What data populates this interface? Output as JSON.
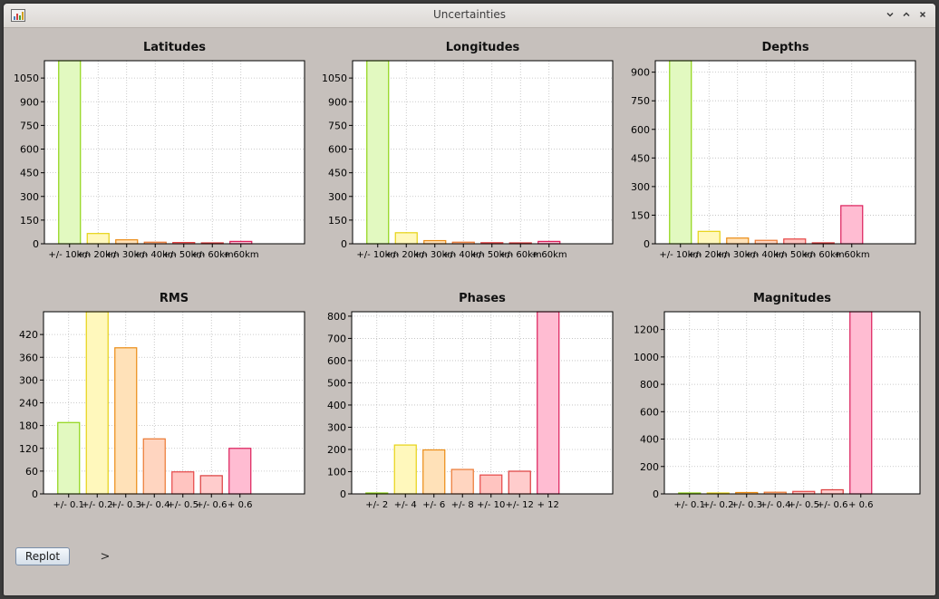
{
  "window": {
    "title": "Uncertainties",
    "controls": {
      "minimize_icon": "chevron-down-icon",
      "maximize_icon": "chevron-up-icon",
      "close_icon": "close-icon"
    }
  },
  "toolbar": {
    "replot_label": "Replot",
    "expand_icon": "chevron-right-icon",
    "expand_glyph": ">"
  },
  "colors": [
    "#8fd414",
    "#e6d214",
    "#eb8c14",
    "#eb7832",
    "#e64646",
    "#dc3c3c",
    "#dc1e5a"
  ],
  "fills": [
    "#e2f9c0",
    "#fff8bc",
    "#ffe1b8",
    "#ffd5c0",
    "#ffc4c0",
    "#ffcccc",
    "#ffbcd2"
  ],
  "chart_data": [
    {
      "type": "bar",
      "title": "Latitudes",
      "categories": [
        "+/- 10km",
        "+/- 20km",
        "+/- 30km",
        "+/- 40km",
        "+/- 50km",
        "+/- 60km",
        "+ 60km"
      ],
      "values": [
        1160,
        65,
        25,
        10,
        8,
        3,
        15
      ],
      "ylim": [
        0,
        1160
      ],
      "yticks": [
        0,
        150,
        300,
        450,
        600,
        750,
        900,
        1050
      ],
      "grid": true
    },
    {
      "type": "bar",
      "title": "Longitudes",
      "categories": [
        "+/- 10km",
        "+/- 20km",
        "+/- 30km",
        "+/- 40km",
        "+/- 50km",
        "+/- 60km",
        "+ 60km"
      ],
      "values": [
        1160,
        70,
        20,
        10,
        7,
        5,
        15
      ],
      "ylim": [
        0,
        1160
      ],
      "yticks": [
        0,
        150,
        300,
        450,
        600,
        750,
        900,
        1050
      ],
      "grid": true
    },
    {
      "type": "bar",
      "title": "Depths",
      "categories": [
        "+/- 10km",
        "+/- 20km",
        "+/- 30km",
        "+/- 40km",
        "+/- 50km",
        "+/- 60km",
        "+ 60km"
      ],
      "values": [
        960,
        65,
        30,
        18,
        25,
        5,
        200
      ],
      "ylim": [
        0,
        960
      ],
      "yticks": [
        0,
        150,
        300,
        450,
        600,
        750,
        900
      ],
      "grid": true
    },
    {
      "type": "bar",
      "title": "RMS",
      "categories": [
        "+/- 0.1",
        "+/- 0.2",
        "+/- 0.3",
        "+/- 0.4",
        "+/- 0.5",
        "+/- 0.6",
        "+ 0.6"
      ],
      "values": [
        188,
        480,
        385,
        145,
        58,
        48,
        120
      ],
      "ylim": [
        0,
        480
      ],
      "yticks": [
        0,
        60,
        120,
        180,
        240,
        300,
        360,
        420
      ],
      "grid": true
    },
    {
      "type": "bar",
      "title": "Phases",
      "categories": [
        "+/- 2",
        "+/- 4",
        "+/- 6",
        "+/- 8",
        "+/- 10",
        "+/- 12",
        "+ 12"
      ],
      "values": [
        2,
        220,
        198,
        110,
        85,
        102,
        820
      ],
      "ylim": [
        0,
        820
      ],
      "yticks": [
        0,
        100,
        200,
        300,
        400,
        500,
        600,
        700,
        800
      ],
      "grid": true
    },
    {
      "type": "bar",
      "title": "Magnitudes",
      "categories": [
        "+/- 0.1",
        "+/- 0.2",
        "+/- 0.3",
        "+/- 0.4",
        "+/- 0.5",
        "+/- 0.6",
        "+ 0.6"
      ],
      "values": [
        4,
        3,
        10,
        12,
        18,
        30,
        1330
      ],
      "ylim": [
        0,
        1330
      ],
      "yticks": [
        0,
        200,
        400,
        600,
        800,
        1000,
        1200
      ],
      "grid": true
    }
  ]
}
